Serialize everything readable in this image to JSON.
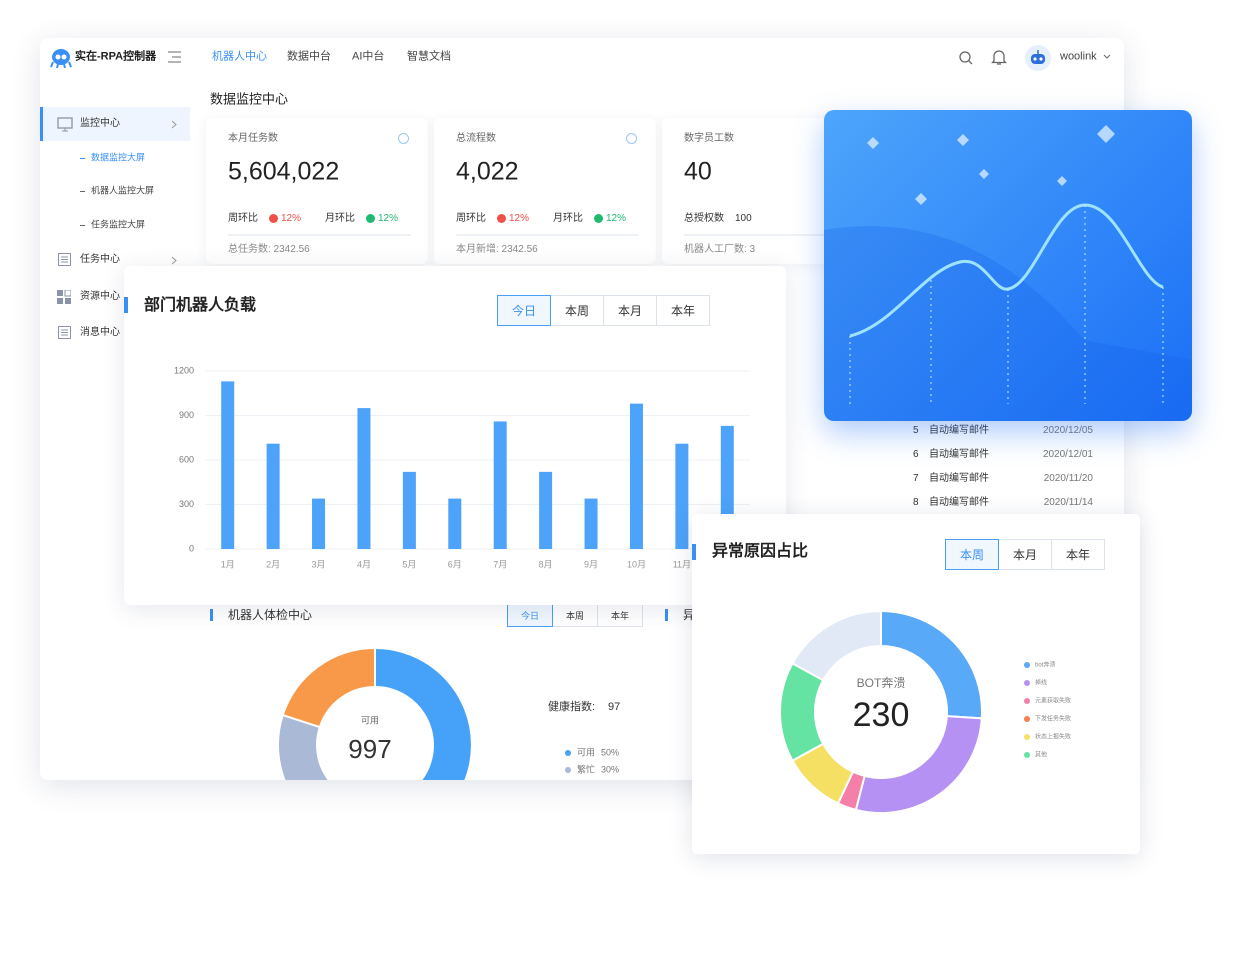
{
  "header": {
    "brand": "实在-RPA控制器",
    "nav": [
      "机器人中心",
      "数据中台",
      "AI中台",
      "智慧文档"
    ],
    "user": "woolink"
  },
  "sidebar": {
    "items": [
      {
        "label": "监控中心",
        "children": [
          "数据监控大屏",
          "机器人监控大屏",
          "任务监控大屏"
        ]
      },
      {
        "label": "任务中心"
      },
      {
        "label": "资源中心"
      },
      {
        "label": "消息中心"
      }
    ]
  },
  "page_title": "数据监控中心",
  "stats": [
    {
      "title": "本月任务数",
      "value": "5,604,022",
      "wow_label": "周环比",
      "wow": "12%",
      "mom_label": "月环比",
      "mom": "12%",
      "footer": "总任务数: 2342.56"
    },
    {
      "title": "总流程数",
      "value": "4,022",
      "wow_label": "周环比",
      "wow": "12%",
      "mom_label": "月环比",
      "mom": "12%",
      "footer": "本月新增: 2342.56"
    },
    {
      "title": "数字员工数",
      "value": "40",
      "extra_label": "总授权数",
      "extra": "100",
      "footer": "机器人工厂数: 3"
    }
  ],
  "task_list": {
    "rows": [
      [
        "5",
        "自动编写邮件",
        "2020/12/05"
      ],
      [
        "6",
        "自动编写邮件",
        "2020/12/01"
      ],
      [
        "7",
        "自动编写邮件",
        "2020/11/20"
      ],
      [
        "8",
        "自动编写邮件",
        "2020/11/14"
      ]
    ]
  },
  "side_panel_title": "异",
  "chart_data": [
    {
      "type": "bar",
      "title": "部门机器人负载",
      "tabs": [
        "今日",
        "本周",
        "本月",
        "本年"
      ],
      "categories": [
        "1月",
        "2月",
        "3月",
        "4月",
        "5月",
        "6月",
        "7月",
        "8月",
        "9月",
        "10月",
        "11月",
        null
      ],
      "values": [
        1130,
        710,
        340,
        950,
        520,
        340,
        860,
        520,
        340,
        980,
        710,
        830
      ],
      "color": "#4da3f9",
      "ylim": [
        0,
        1200
      ],
      "yticks": [
        0,
        300,
        600,
        900,
        1200
      ],
      "grid": true
    },
    {
      "type": "donut",
      "title": "机器人体检中心",
      "tabs": [
        "今日",
        "本周",
        "本年"
      ],
      "center_label": "可用",
      "center_value": "997",
      "health_label": "健康指数:",
      "health": "97",
      "categories": [
        "可用",
        "繁忙",
        null
      ],
      "values": [
        50,
        30,
        20
      ],
      "value_labels": [
        "50%",
        "30%",
        null
      ],
      "colors": [
        "#46a2f8",
        "#a9b9d6",
        "#f8994a"
      ]
    },
    {
      "type": "donut",
      "title": "异常原因占比",
      "tabs": [
        "本周",
        "本月",
        "本年"
      ],
      "center_label": "BOT奔溃",
      "center_value": "230",
      "categories": [
        "bot奔溃",
        "掉线",
        "元素获取失败",
        "下发任务失败",
        "状态上报失败",
        "其他",
        null
      ],
      "values": [
        26,
        28,
        3,
        0,
        10,
        16,
        17
      ],
      "colors": [
        "#58a9f7",
        "#b491f2",
        "#f47fa8",
        "#f5804a",
        "#f6e064",
        "#64e3a2",
        "#e1e9f7"
      ]
    }
  ]
}
